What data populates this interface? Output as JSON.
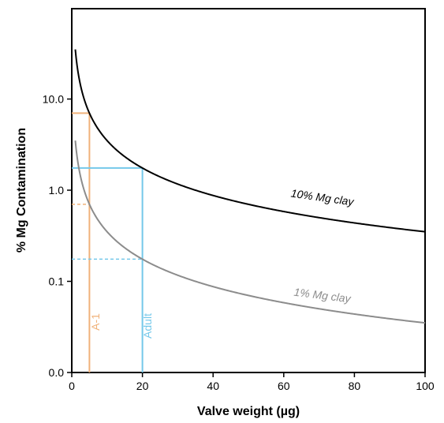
{
  "chart_data": {
    "type": "line",
    "xlabel": "Valve weight (µg)",
    "ylabel": "% Mg Contamination",
    "xlim": [
      0,
      100
    ],
    "y_scale": "log",
    "x_ticks": [
      "0",
      "20",
      "40",
      "60",
      "80",
      "100"
    ],
    "y_ticks": [
      "0.0",
      "0.1",
      "1.0",
      "10.0"
    ],
    "series": [
      {
        "name": "10% Mg clay",
        "color": "#000000",
        "points": [
          [
            1,
            35
          ],
          [
            2,
            17.5
          ],
          [
            5,
            7
          ],
          [
            10,
            3.5
          ],
          [
            20,
            1.75
          ],
          [
            40,
            0.875
          ],
          [
            60,
            0.583
          ],
          [
            80,
            0.4375
          ],
          [
            100,
            0.35
          ]
        ]
      },
      {
        "name": "1% Mg clay",
        "color": "#8c8c8c",
        "points": [
          [
            1,
            3.5
          ],
          [
            2,
            1.75
          ],
          [
            5,
            0.7
          ],
          [
            10,
            0.35
          ],
          [
            20,
            0.175
          ],
          [
            40,
            0.0875
          ],
          [
            60,
            0.0583
          ],
          [
            80,
            0.04375
          ],
          [
            100,
            0.035
          ]
        ]
      }
    ],
    "markers": [
      {
        "label": "A-1",
        "x": 5,
        "color": "#f0b27a",
        "y_high": 7,
        "y_low": 0.7
      },
      {
        "label": "Adult",
        "x": 20,
        "color": "#74c8ea",
        "y_high": 1.75,
        "y_low": 0.175
      }
    ]
  }
}
